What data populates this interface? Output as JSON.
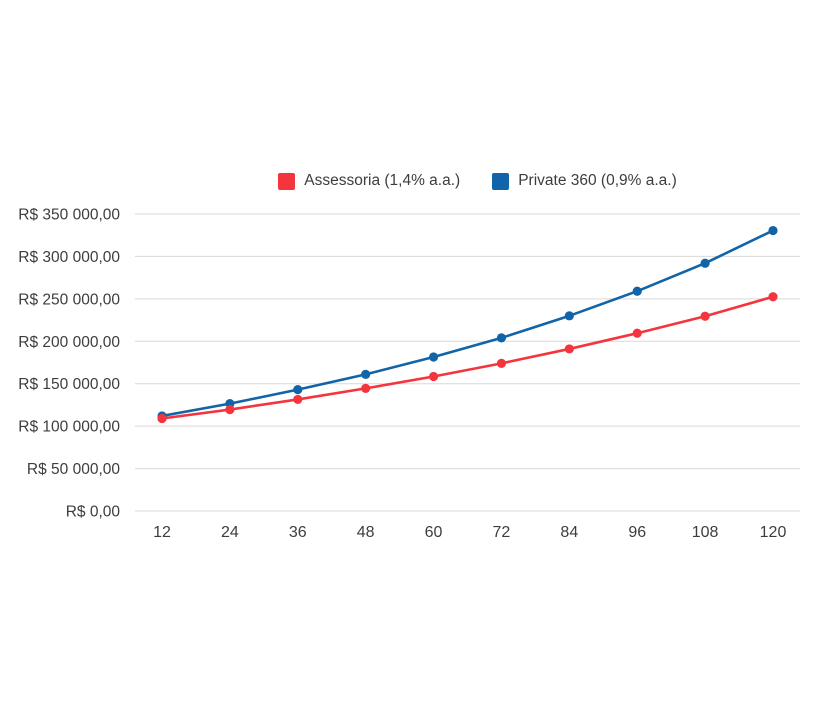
{
  "page": {
    "background": "#ffffff",
    "text_color": "#3d3d3d",
    "gridline_color": "#d9d9d9"
  },
  "legend": {
    "items": [
      {
        "label": "Assessoria (1,4% a.a.)",
        "color": "#f5353e"
      },
      {
        "label": "Private 360 (0,9% a.a.)",
        "color": "#1264a8"
      }
    ]
  },
  "chart_data": {
    "type": "line",
    "title": "",
    "xlabel": "",
    "ylabel": "",
    "x": [
      12,
      24,
      36,
      48,
      60,
      72,
      84,
      96,
      108,
      120
    ],
    "series": [
      {
        "name": "Assessoria (1,4% a.a.)",
        "color": "#f5353e",
        "values": [
          109000,
          119500,
          131500,
          144500,
          158500,
          174000,
          191000,
          209500,
          229500,
          252500
        ]
      },
      {
        "name": "Private 360 (0,9% a.a.)",
        "color": "#1264a8",
        "values": [
          112000,
          126500,
          143000,
          161000,
          181500,
          204000,
          230000,
          259000,
          292000,
          330500
        ]
      }
    ],
    "ylim": [
      0,
      350000
    ],
    "y_ticks": [
      {
        "value": 0,
        "label": "R$ 0,00"
      },
      {
        "value": 50000,
        "label": "R$ 50 000,00"
      },
      {
        "value": 100000,
        "label": "R$ 100 000,00"
      },
      {
        "value": 150000,
        "label": "R$ 150 000,00"
      },
      {
        "value": 200000,
        "label": "R$ 200 000,00"
      },
      {
        "value": 250000,
        "label": "R$ 250 000,00"
      },
      {
        "value": 300000,
        "label": "R$ 300 000,00"
      },
      {
        "value": 350000,
        "label": "R$ 350 000,00"
      }
    ],
    "grid": "horizontal",
    "legend_position": "top",
    "marker": "circle"
  }
}
